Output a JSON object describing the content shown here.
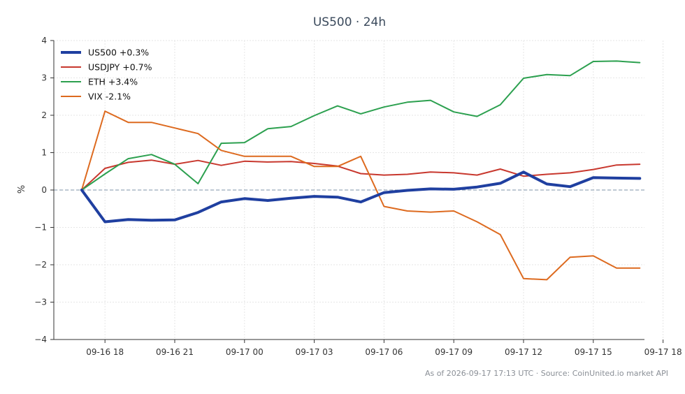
{
  "chart_data": {
    "type": "line",
    "title": "US500 · 24h",
    "ylabel": "%",
    "xlabel": "",
    "ylim": [
      -4,
      4
    ],
    "y_ticks": [
      -4,
      -3,
      -2,
      -1,
      0,
      1,
      2,
      3,
      4
    ],
    "y_tick_labels": [
      "−4",
      "−3",
      "−2",
      "−1",
      "0",
      "1",
      "2",
      "3",
      "4"
    ],
    "x_range_hours": [
      -1.2,
      24.2
    ],
    "x_ticks": [
      {
        "hour": 1,
        "label": "09-16 18"
      },
      {
        "hour": 4,
        "label": "09-16 21"
      },
      {
        "hour": 7,
        "label": "09-17 00"
      },
      {
        "hour": 10,
        "label": "09-17 03"
      },
      {
        "hour": 13,
        "label": "09-17 06"
      },
      {
        "hour": 16,
        "label": "09-17 09"
      },
      {
        "hour": 19,
        "label": "09-17 12"
      },
      {
        "hour": 22,
        "label": "09-17 15"
      },
      {
        "hour": 25,
        "label": "09-17 18"
      }
    ],
    "x": [
      0,
      1,
      2,
      3,
      4,
      5,
      6,
      7,
      8,
      9,
      10,
      11,
      12,
      13,
      14,
      15,
      16,
      17,
      18,
      19,
      20,
      21,
      22,
      23,
      24
    ],
    "grid": true,
    "legend_position": "top-left",
    "zero_line": true,
    "series": [
      {
        "name": "US500 +0.3%",
        "color": "#1f3fa0",
        "width": 4,
        "values": [
          0,
          -0.85,
          -0.79,
          -0.81,
          -0.8,
          -0.6,
          -0.32,
          -0.23,
          -0.28,
          -0.22,
          -0.17,
          -0.19,
          -0.32,
          -0.07,
          -0.01,
          0.03,
          0.02,
          0.08,
          0.18,
          0.48,
          0.16,
          0.09,
          0.33,
          0.32,
          0.31
        ]
      },
      {
        "name": "USDJPY +0.7%",
        "color": "#c8382e",
        "width": 2,
        "values": [
          0,
          0.58,
          0.74,
          0.8,
          0.69,
          0.79,
          0.66,
          0.77,
          0.75,
          0.76,
          0.71,
          0.64,
          0.44,
          0.4,
          0.42,
          0.48,
          0.46,
          0.4,
          0.56,
          0.37,
          0.42,
          0.46,
          0.55,
          0.67,
          0.69
        ]
      },
      {
        "name": "ETH +3.4%",
        "color": "#2ca04f",
        "width": 2,
        "values": [
          0,
          0.43,
          0.84,
          0.95,
          0.69,
          0.17,
          1.25,
          1.27,
          1.64,
          1.7,
          1.99,
          2.25,
          2.04,
          2.22,
          2.35,
          2.4,
          2.09,
          1.97,
          2.28,
          2.99,
          3.09,
          3.06,
          3.44,
          3.45,
          3.41
        ]
      },
      {
        "name": "VIX -2.1%",
        "color": "#dd6a1f",
        "width": 2,
        "values": [
          0,
          2.11,
          1.81,
          1.81,
          1.66,
          1.51,
          1.06,
          0.9,
          0.9,
          0.9,
          0.63,
          0.63,
          0.9,
          -0.44,
          -0.56,
          -0.59,
          -0.56,
          -0.85,
          -1.19,
          -2.37,
          -2.4,
          -1.8,
          -1.76,
          -2.09,
          -2.09
        ]
      }
    ],
    "footer": "As of 2026-09-17 17:13 UTC · Source: CoinUnited.io market API"
  }
}
